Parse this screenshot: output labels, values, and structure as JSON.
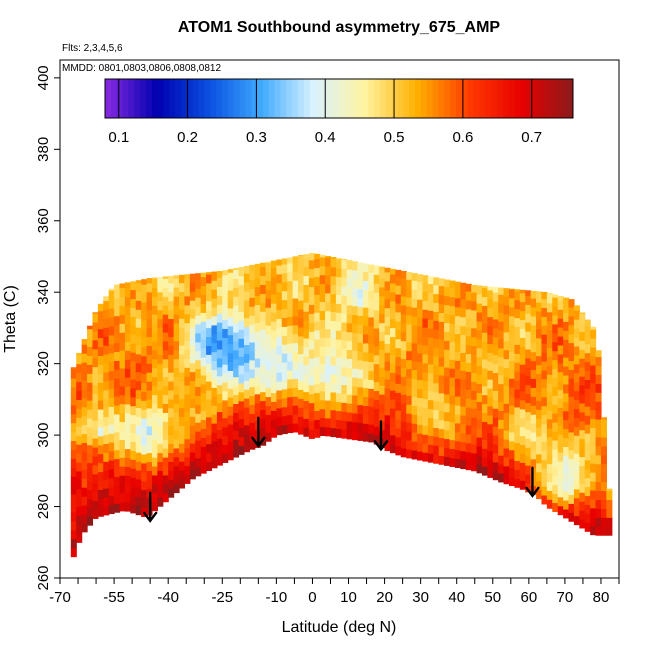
{
  "chart_data": {
    "type": "heatmap",
    "title": "ATOM1 Southbound asymmetry_675_AMP",
    "annotations": [
      "Flts: 2,3,4,5,6",
      "MMDD: 0801,0803,0806,0808,0812"
    ],
    "xlabel": "Latitude (deg N)",
    "ylabel": "Theta (C)",
    "xlim": [
      -70,
      85
    ],
    "ylim": [
      260,
      405
    ],
    "x_ticks": [
      -70,
      -55,
      -40,
      -25,
      -10,
      0,
      10,
      20,
      30,
      40,
      50,
      60,
      70,
      80
    ],
    "y_ticks": [
      260,
      280,
      300,
      320,
      340,
      360,
      380,
      400
    ],
    "colorbar": {
      "range": [
        0.08,
        0.76
      ],
      "ticks": [
        0.1,
        0.2,
        0.3,
        0.4,
        0.5,
        0.6,
        0.7
      ],
      "stops": [
        "#8a2be2",
        "#0000b0",
        "#0a4fe0",
        "#3fa9ff",
        "#d9f2ff",
        "#fff3a0",
        "#ffb000",
        "#ff3b00",
        "#e80000",
        "#8b1a1a"
      ]
    },
    "upper_boundary": [
      [
        -67,
        317
      ],
      [
        -64,
        325
      ],
      [
        -60,
        335
      ],
      [
        -55,
        342
      ],
      [
        -45,
        344
      ],
      [
        -35,
        345
      ],
      [
        -25,
        346
      ],
      [
        -15,
        348
      ],
      [
        -5,
        350
      ],
      [
        0,
        351
      ],
      [
        5,
        350
      ],
      [
        15,
        348
      ],
      [
        25,
        346
      ],
      [
        35,
        344
      ],
      [
        45,
        342
      ],
      [
        55,
        341
      ],
      [
        65,
        340
      ],
      [
        72,
        338
      ],
      [
        78,
        330
      ],
      [
        80,
        320
      ],
      [
        81,
        300
      ],
      [
        82,
        285
      ]
    ],
    "lower_boundary": [
      [
        -67,
        264
      ],
      [
        -64,
        272
      ],
      [
        -60,
        277
      ],
      [
        -52,
        279
      ],
      [
        -46,
        277
      ],
      [
        -40,
        282
      ],
      [
        -33,
        288
      ],
      [
        -25,
        292
      ],
      [
        -17,
        296
      ],
      [
        -14,
        297
      ],
      [
        -10,
        300
      ],
      [
        -5,
        301
      ],
      [
        0,
        299
      ],
      [
        3,
        300
      ],
      [
        10,
        299
      ],
      [
        17,
        298
      ],
      [
        20,
        296
      ],
      [
        25,
        294
      ],
      [
        35,
        292
      ],
      [
        45,
        290
      ],
      [
        52,
        287
      ],
      [
        58,
        285
      ],
      [
        62,
        283
      ],
      [
        65,
        280
      ],
      [
        70,
        277
      ],
      [
        78,
        272
      ],
      [
        82,
        272
      ]
    ],
    "arrows": [
      [
        -45,
        276
      ],
      [
        -15,
        297
      ],
      [
        19,
        296
      ],
      [
        61,
        283
      ]
    ],
    "features": [
      {
        "lat": -26,
        "theta": 326,
        "value": 0.22,
        "spread": 7
      },
      {
        "lat": -22,
        "theta": 322,
        "value": 0.3,
        "spread": 9
      },
      {
        "lat": -10,
        "theta": 320,
        "value": 0.36,
        "spread": 8
      },
      {
        "lat": 5,
        "theta": 318,
        "value": 0.42,
        "spread": 12
      },
      {
        "lat": 12,
        "theta": 340,
        "value": 0.4,
        "spread": 6
      },
      {
        "lat": -45,
        "theta": 301,
        "value": 0.38,
        "spread": 8
      },
      {
        "lat": -58,
        "theta": 302,
        "value": 0.42,
        "spread": 6
      },
      {
        "lat": 70,
        "theta": 289,
        "value": 0.4,
        "spread": 9
      },
      {
        "lat": 60,
        "theta": 300,
        "value": 0.46,
        "spread": 8
      },
      {
        "lat": 35,
        "theta": 305,
        "value": 0.5,
        "spread": 10
      },
      {
        "lat": 48,
        "theta": 322,
        "value": 0.52,
        "spread": 9
      },
      {
        "lat": -35,
        "theta": 310,
        "value": 0.52,
        "spread": 9
      }
    ]
  }
}
